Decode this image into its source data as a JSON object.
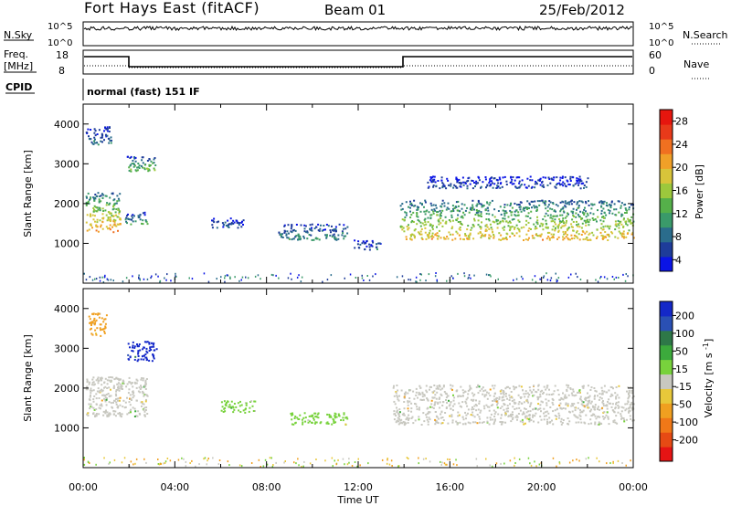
{
  "header": {
    "station": "Fort Hays East (fitACF)",
    "beam": "Beam 01",
    "date": "25/Feb/2012"
  },
  "strip": {
    "nsky_label": "N.Sky",
    "nsky_ticks": [
      "10^5",
      "10^0"
    ],
    "nsearch_label": "N.Search",
    "nsearch_ticks": [
      "10^5",
      "10^0"
    ],
    "freq_label_1": "Freq.",
    "freq_label_2": "[MHz]",
    "freq_ticks": [
      "18",
      "8"
    ],
    "nave_label": "Nave",
    "nave_ticks": [
      "60",
      "0"
    ],
    "cpid_label": "CPID",
    "cpid_text": "normal (fast) 151 IF"
  },
  "chart_data": [
    {
      "type": "heatmap",
      "title": "",
      "xlabel": "Time UT",
      "ylabel": "Slant Range [km]",
      "xlim": [
        "00:00",
        "24:00"
      ],
      "ylim": [
        0,
        4500
      ],
      "x_ticks": [
        "00:00",
        "04:00",
        "08:00",
        "12:00",
        "16:00",
        "20:00",
        "00:00"
      ],
      "y_ticks": [
        1000,
        2000,
        3000,
        4000
      ],
      "colorbar": {
        "label": "Power [dB]",
        "ticks": [
          4,
          8,
          12,
          16,
          20,
          24,
          28
        ],
        "colors": [
          "#0a14e6",
          "#1e3c9a",
          "#2a6c8c",
          "#3a9a6a",
          "#55b04a",
          "#9cc83c",
          "#d8c43a",
          "#f0a028",
          "#f07020",
          "#e83a1a",
          "#e6160e"
        ]
      },
      "echo_regions": [
        {
          "t": [
            0.1,
            1.6
          ],
          "r": [
            1300,
            2300
          ],
          "power": 18
        },
        {
          "t": [
            0.1,
            1.2
          ],
          "r": [
            3500,
            3950
          ],
          "power": 6
        },
        {
          "t": [
            1.9,
            3.2
          ],
          "r": [
            2800,
            3200
          ],
          "power": 12
        },
        {
          "t": [
            1.8,
            2.8
          ],
          "r": [
            1500,
            1800
          ],
          "power": 9
        },
        {
          "t": [
            5.5,
            7.0
          ],
          "r": [
            1400,
            1650
          ],
          "power": 5
        },
        {
          "t": [
            8.5,
            11.5
          ],
          "r": [
            1100,
            1500
          ],
          "power": 8
        },
        {
          "t": [
            11.8,
            13.0
          ],
          "r": [
            850,
            1100
          ],
          "power": 5
        },
        {
          "t": [
            13.8,
            24.0
          ],
          "r": [
            1100,
            2100
          ],
          "power": 16
        },
        {
          "t": [
            15.0,
            22.0
          ],
          "r": [
            2400,
            2700
          ],
          "power": 4
        }
      ]
    },
    {
      "type": "heatmap",
      "title": "",
      "xlabel": "Time UT",
      "ylabel": "Slant Range [km]",
      "xlim": [
        "00:00",
        "24:00"
      ],
      "ylim": [
        0,
        4500
      ],
      "x_ticks": [
        "00:00",
        "04:00",
        "08:00",
        "12:00",
        "16:00",
        "20:00",
        "00:00"
      ],
      "y_ticks": [
        1000,
        2000,
        3000,
        4000
      ],
      "colorbar": {
        "label": "Velocity [m s^-1]",
        "ticks": [
          200,
          100,
          50,
          15,
          -15,
          -50,
          -100,
          -200
        ],
        "colors": [
          "#1428c8",
          "#2a50b4",
          "#2e7848",
          "#3caa3c",
          "#78d23c",
          "#c8c8c0",
          "#e8c83a",
          "#f0a020",
          "#f07818",
          "#e64a14",
          "#e61414"
        ]
      },
      "echo_regions": [
        {
          "t": [
            0.1,
            2.8
          ],
          "r": [
            1300,
            2300
          ],
          "velocity": 0
        },
        {
          "t": [
            1.9,
            3.2
          ],
          "r": [
            2700,
            3200
          ],
          "velocity": 200
        },
        {
          "t": [
            0.2,
            1.0
          ],
          "r": [
            3300,
            3900
          ],
          "velocity": -40
        },
        {
          "t": [
            6.0,
            7.5
          ],
          "r": [
            1400,
            1700
          ],
          "velocity": 60
        },
        {
          "t": [
            9.0,
            11.5
          ],
          "r": [
            1100,
            1400
          ],
          "velocity": 50
        },
        {
          "t": [
            13.5,
            24.0
          ],
          "r": [
            1100,
            2100
          ],
          "velocity": 0
        }
      ]
    }
  ]
}
